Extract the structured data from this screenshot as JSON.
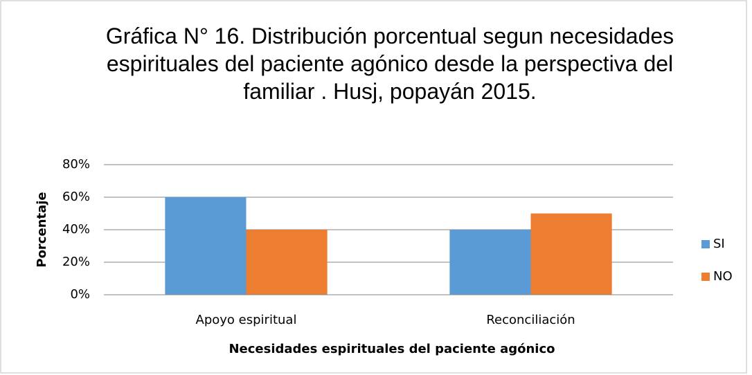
{
  "chart_data": {
    "type": "bar",
    "title": "Gráfica N° 16. Distribución porcentual segun necesidades espirituales del paciente agónico desde la perspectiva del familiar . Husj, popayán 2015.",
    "categories": [
      "Apoyo espiritual",
      "Reconciliación"
    ],
    "series": [
      {
        "name": "SI",
        "color": "#5b9bd5",
        "values": [
          60,
          40
        ]
      },
      {
        "name": "NO",
        "color": "#ed7d31",
        "values": [
          40,
          50
        ]
      }
    ],
    "x_label": "Necesidades espirituales del paciente agónico",
    "y_label": "Porcentaje",
    "ylim": [
      0,
      80
    ],
    "yticks": [
      {
        "value": 0,
        "label": "0%"
      },
      {
        "value": 20,
        "label": "20%"
      },
      {
        "value": 40,
        "label": "40%"
      },
      {
        "value": 60,
        "label": "60%"
      },
      {
        "value": 80,
        "label": "80%"
      }
    ],
    "grid": true,
    "legend": "right"
  }
}
